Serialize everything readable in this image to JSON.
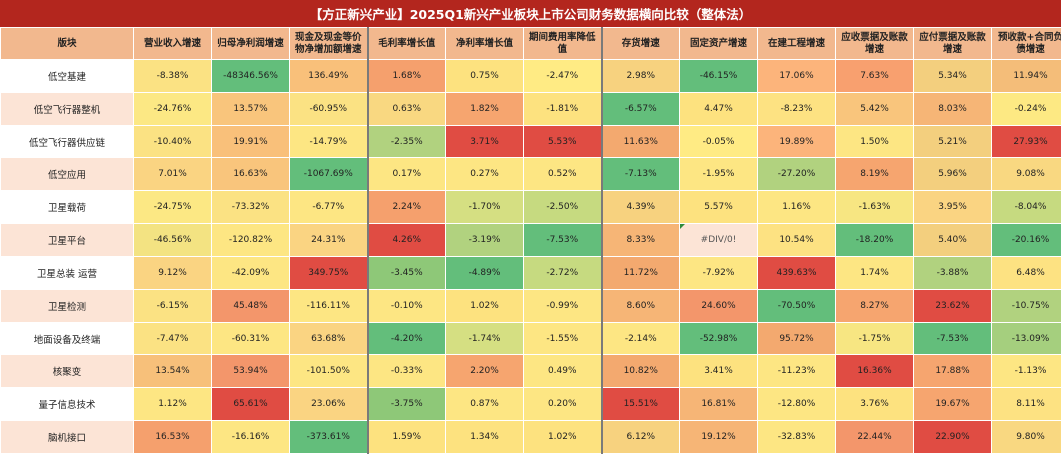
{
  "title": "【方正新兴产业】2025Q1新兴产业板块上市公司财务数据横向比较（整体法）",
  "headers": [
    "版块",
    "营业收入增速",
    "归母净利润增速",
    "现金及现金等价物净增加额增速",
    "毛利率增长值",
    "净利率增长值",
    "期间费用率降低值",
    "存货增速",
    "固定资产增速",
    "在建工程增速",
    "应收票据及账款增速",
    "应付票据及账款增速",
    "预收款+合同负债增速"
  ],
  "rows": [
    {
      "name": "低空基建",
      "values": [
        "-8.38%",
        "-48346.56%",
        "136.49%",
        "1.68%",
        "0.75%",
        "-2.47%",
        "2.98%",
        "-46.15%",
        "17.06%",
        "7.63%",
        "5.34%",
        "11.94%"
      ],
      "colors": [
        "#fbe283",
        "#63be7b",
        "#f9c07a",
        "#f5a06d",
        "#fde27f",
        "#ffeb84",
        "#f7d27f",
        "#63be7b",
        "#fcb47b",
        "#f8a06f",
        "#f3cf7e",
        "#f4bd79"
      ]
    },
    {
      "name": "低空飞行器整机",
      "values": [
        "-24.76%",
        "13.57%",
        "-60.95%",
        "0.63%",
        "1.82%",
        "-1.81%",
        "-6.57%",
        "4.47%",
        "-8.23%",
        "5.42%",
        "8.03%",
        "-0.24%"
      ],
      "colors": [
        "#fce884",
        "#f9c57c",
        "#fbe283",
        "#f9d881",
        "#f6a56f",
        "#fde27f",
        "#63be7b",
        "#fde27f",
        "#fde282",
        "#f9c57c",
        "#f6b576",
        "#fde983"
      ]
    },
    {
      "name": "低空飞行器供应链",
      "values": [
        "-10.40%",
        "19.91%",
        "-14.79%",
        "-2.35%",
        "3.71%",
        "5.53%",
        "11.63%",
        "-0.05%",
        "19.89%",
        "1.50%",
        "5.21%",
        "27.93%"
      ],
      "colors": [
        "#fbe283",
        "#f9c07a",
        "#fde683",
        "#b1d27f",
        "#e04c43",
        "#e04c43",
        "#f3a96f",
        "#ffeb84",
        "#fcb47b",
        "#fde683",
        "#f3cf7e",
        "#e04c43"
      ]
    },
    {
      "name": "低空应用",
      "values": [
        "7.01%",
        "16.63%",
        "-1067.69%",
        "0.17%",
        "0.27%",
        "0.52%",
        "-7.13%",
        "-1.95%",
        "-27.20%",
        "8.19%",
        "5.96%",
        "9.08%"
      ],
      "colors": [
        "#fad482",
        "#f9c57c",
        "#63be7b",
        "#fde683",
        "#fde683",
        "#fde683",
        "#63be7b",
        "#fde683",
        "#b1d27f",
        "#f6a56f",
        "#f3cf7e",
        "#f9d881"
      ]
    },
    {
      "name": "卫星载荷",
      "values": [
        "-24.75%",
        "-73.32%",
        "-6.77%",
        "2.24%",
        "-1.70%",
        "-2.50%",
        "4.39%",
        "5.57%",
        "1.16%",
        "-1.63%",
        "3.95%",
        "-8.04%"
      ],
      "colors": [
        "#fce884",
        "#fbe283",
        "#fde683",
        "#f5a06d",
        "#d5df82",
        "#c6da80",
        "#f7d27f",
        "#fde27f",
        "#fde683",
        "#f7e682",
        "#fad482",
        "#c6da80"
      ]
    },
    {
      "name": "卫星平台",
      "values": [
        "-46.56%",
        "-120.82%",
        "24.31%",
        "4.26%",
        "-3.19%",
        "-7.53%",
        "8.33%",
        "#DIV/0!",
        "10.54%",
        "-18.20%",
        "5.40%",
        "-20.16%"
      ],
      "colors": [
        "#f3e382",
        "#fde683",
        "#fad482",
        "#e04c43",
        "#b1d27f",
        "#63be7b",
        "#f6b576",
        "#fce4d6",
        "#fde282",
        "#63be7b",
        "#f3cf7e",
        "#63be7b"
      ]
    },
    {
      "name": "卫星总装 运营",
      "values": [
        "9.12%",
        "-42.09%",
        "349.75%",
        "-3.45%",
        "-4.89%",
        "-2.72%",
        "11.72%",
        "-7.92%",
        "439.63%",
        "1.74%",
        "-3.88%",
        "6.48%"
      ],
      "colors": [
        "#fad482",
        "#fde683",
        "#e04c43",
        "#8ec878",
        "#63be7b",
        "#c6da80",
        "#f3a96f",
        "#fde683",
        "#e04c43",
        "#fde683",
        "#b1d27f",
        "#fde282"
      ]
    },
    {
      "name": "卫星检测",
      "values": [
        "-6.15%",
        "45.48%",
        "-116.11%",
        "-0.10%",
        "1.02%",
        "-0.99%",
        "8.60%",
        "24.60%",
        "-70.50%",
        "8.27%",
        "23.62%",
        "-10.75%"
      ],
      "colors": [
        "#fbe283",
        "#f3966b",
        "#fde683",
        "#fde683",
        "#fde27f",
        "#fde683",
        "#f6b576",
        "#f3966b",
        "#63be7b",
        "#f6a56f",
        "#e04c43",
        "#b1d27f"
      ]
    },
    {
      "name": "地面设备及终端",
      "values": [
        "-7.47%",
        "-60.31%",
        "63.68%",
        "-4.20%",
        "-1.74%",
        "-1.55%",
        "-2.14%",
        "-52.98%",
        "95.72%",
        "-1.75%",
        "-7.53%",
        "-13.09%"
      ],
      "colors": [
        "#fbe283",
        "#fde683",
        "#fad482",
        "#63be7b",
        "#d5df82",
        "#fde683",
        "#fde683",
        "#63be7b",
        "#f3a96f",
        "#f7e682",
        "#63be7b",
        "#a5cf7e"
      ]
    },
    {
      "name": "核聚变",
      "values": [
        "13.54%",
        "53.94%",
        "-101.50%",
        "-0.33%",
        "2.20%",
        "0.49%",
        "10.82%",
        "3.41%",
        "-11.23%",
        "16.36%",
        "17.88%",
        "-1.13%"
      ],
      "colors": [
        "#f7c07a",
        "#f3966b",
        "#fde683",
        "#fde683",
        "#f6a56f",
        "#fde683",
        "#f3a96f",
        "#fde27f",
        "#fde683",
        "#e04c43",
        "#f6a56f",
        "#fde683"
      ]
    },
    {
      "name": "量子信息技术",
      "values": [
        "1.12%",
        "65.61%",
        "23.06%",
        "-3.75%",
        "0.87%",
        "0.20%",
        "15.51%",
        "16.81%",
        "-12.80%",
        "3.76%",
        "19.67%",
        "8.11%"
      ],
      "colors": [
        "#fde683",
        "#e04c43",
        "#fad482",
        "#8ec878",
        "#fde683",
        "#fde683",
        "#e04c43",
        "#f6b576",
        "#fde683",
        "#fde27f",
        "#f6a56f",
        "#fde282"
      ]
    },
    {
      "name": "脑机接口",
      "values": [
        "16.53%",
        "-16.16%",
        "-373.61%",
        "1.59%",
        "1.34%",
        "1.02%",
        "6.12%",
        "19.12%",
        "-32.83%",
        "22.44%",
        "22.90%",
        "9.80%"
      ],
      "colors": [
        "#f5a06d",
        "#fde683",
        "#63be7b",
        "#fde27f",
        "#fde27f",
        "#fde27f",
        "#f7d27f",
        "#f6b576",
        "#fde683",
        "#f3966b",
        "#e04c43",
        "#f9d881"
      ]
    }
  ]
}
